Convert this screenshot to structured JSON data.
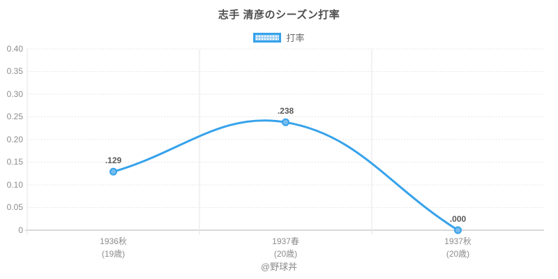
{
  "title": "志手 清彦のシーズン打率",
  "legend": {
    "label": "打率"
  },
  "footer": "@野球丼",
  "colors": {
    "line": "#36A2EB",
    "point_fill": "#77BCEC",
    "legend_fill": "#A5D2F2",
    "grid_dashed": "#E6E6E6",
    "grid_solid": "#E6E6E6",
    "zero_line": "#D9D9D9",
    "axis_text": "#8C8C8C",
    "title_text": "#4D4D4D",
    "point_label_text": "#595959"
  },
  "chart_data": {
    "type": "line",
    "title": "志手 清彦のシーズン打率",
    "categories": [
      [
        "1936秋",
        "(19歳)"
      ],
      [
        "1937春",
        "(20歳)"
      ],
      [
        "1937秋",
        "(20歳)"
      ]
    ],
    "series": [
      {
        "name": "打率",
        "values": [
          0.129,
          0.238,
          0.0
        ]
      }
    ],
    "point_labels": [
      ".129",
      ".238",
      ".000"
    ],
    "xlabel": "",
    "ylabel": "",
    "ylim": [
      0,
      0.4
    ],
    "yticks": [
      0,
      0.05,
      0.1,
      0.15,
      0.2,
      0.25,
      0.3,
      0.35,
      0.4
    ],
    "ytick_labels": [
      "0",
      "0.05",
      "0.10",
      "0.15",
      "0.20",
      "0.25",
      "0.30",
      "0.35",
      "0.40"
    ],
    "grid": true,
    "legend_position": "top",
    "line_style": "smooth"
  }
}
